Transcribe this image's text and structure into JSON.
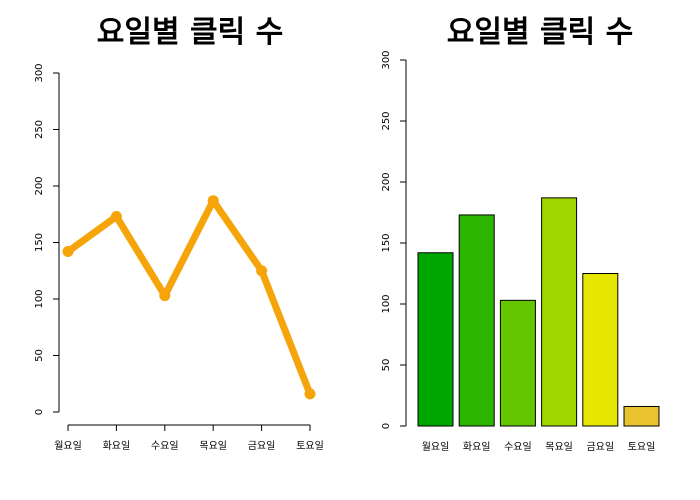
{
  "chart_data": [
    {
      "type": "line",
      "title": "요일별 클릭 수",
      "categories": [
        "월요일",
        "화요일",
        "수요일",
        "목요일",
        "금요일",
        "토요일"
      ],
      "values": [
        142,
        173,
        103,
        187,
        125,
        16
      ],
      "color": "#F5A40A",
      "ylim": [
        0,
        300
      ],
      "yticks": [
        "0",
        "50",
        "100",
        "150",
        "200",
        "250",
        "300"
      ]
    },
    {
      "type": "bar",
      "title": "요일별 클릭 수",
      "categories": [
        "월요일",
        "화요일",
        "수요일",
        "목요일",
        "금요일",
        "토요일"
      ],
      "values": [
        142,
        173,
        103,
        187,
        125,
        16
      ],
      "colors": [
        "#00A600",
        "#2DB600",
        "#63C600",
        "#A0D600",
        "#E6E600",
        "#E8C32E"
      ],
      "ylim": [
        0,
        300
      ],
      "yticks": [
        "0",
        "50",
        "100",
        "150",
        "200",
        "250",
        "300"
      ]
    }
  ]
}
